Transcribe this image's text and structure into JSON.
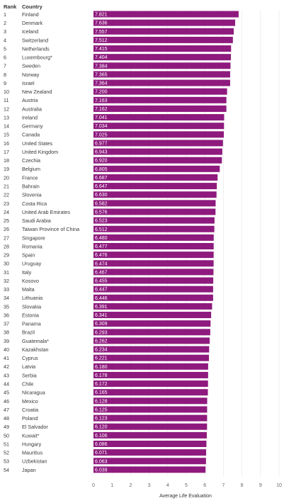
{
  "headers": {
    "rank": "Rank",
    "country": "Country"
  },
  "colors": {
    "bar": "#8e1a7e",
    "value_text": "#ffffff"
  },
  "chart_data": {
    "type": "bar",
    "orientation": "horizontal",
    "xlabel": "Average Life Evaluation",
    "xlim": [
      0,
      10
    ],
    "xticks": [
      "0",
      "1",
      "2",
      "3",
      "4",
      "5",
      "6",
      "7",
      "8",
      "9",
      "10"
    ],
    "grid": true,
    "ranks": [
      "1",
      "2",
      "3",
      "4",
      "5",
      "6",
      "7",
      "8",
      "9",
      "10",
      "11",
      "12",
      "13",
      "14",
      "15",
      "16",
      "17",
      "18",
      "19",
      "20",
      "21",
      "22",
      "23",
      "24",
      "25",
      "26",
      "27",
      "28",
      "29",
      "30",
      "31",
      "32",
      "33",
      "34",
      "35",
      "36",
      "37",
      "38",
      "39",
      "40",
      "41",
      "42",
      "43",
      "44",
      "45",
      "46",
      "47",
      "48",
      "49",
      "50",
      "51",
      "52",
      "53",
      "54"
    ],
    "categories": [
      "Finland",
      "Denmark",
      "Iceland",
      "Switzerland",
      "Netherlands",
      "Luxembourg*",
      "Sweden",
      "Norway",
      "Israel",
      "New Zealand",
      "Austria",
      "Australia",
      "Ireland",
      "Germany",
      "Canada",
      "United States",
      "United Kingdom",
      "Czechia",
      "Belgium",
      "France",
      "Bahrain",
      "Slovenia",
      "Costa Rica",
      "United Arab Emirates",
      "Saudi Arabia",
      "Taiwan Province of China",
      "Singapore",
      "Romania",
      "Spain",
      "Uruguay",
      "Italy",
      "Kosovo",
      "Malta",
      "Lithuania",
      "Slovakia",
      "Estonia",
      "Panama",
      "Brazil",
      "Guatemala*",
      "Kazakhstan",
      "Cyprus",
      "Latvia",
      "Serbia",
      "Chile",
      "Nicaragua",
      "Mexico",
      "Croatia",
      "Poland",
      "El Salvador",
      "Kuwait*",
      "Hungary",
      "Mauritius",
      "Uzbekistan",
      "Japan"
    ],
    "values": [
      7.821,
      7.636,
      7.557,
      7.512,
      7.415,
      7.404,
      7.384,
      7.365,
      7.364,
      7.2,
      7.163,
      7.162,
      7.041,
      7.034,
      7.025,
      6.977,
      6.943,
      6.92,
      6.805,
      6.687,
      6.647,
      6.63,
      6.582,
      6.576,
      6.523,
      6.512,
      6.48,
      6.477,
      6.476,
      6.474,
      6.467,
      6.455,
      6.447,
      6.446,
      6.391,
      6.341,
      6.309,
      6.293,
      6.262,
      6.234,
      6.221,
      6.18,
      6.178,
      6.172,
      6.165,
      6.128,
      6.125,
      6.123,
      6.12,
      6.106,
      6.086,
      6.071,
      6.063,
      6.039
    ],
    "value_labels": [
      "7.821",
      "7.636",
      "7.557",
      "7.512",
      "7.415",
      "7.404",
      "7.384",
      "7.365",
      "7.364",
      "7.200",
      "7.163",
      "7.162",
      "7.041",
      "7.034",
      "7.025",
      "6.977",
      "6.943",
      "6.920",
      "6.805",
      "6.687",
      "6.647",
      "6.630",
      "6.582",
      "6.576",
      "6.523",
      "6.512",
      "6.480",
      "6.477",
      "6.476",
      "6.474",
      "6.467",
      "6.455",
      "6.447",
      "6.446",
      "6.391",
      "6.341",
      "6.309",
      "6.293",
      "6.262",
      "6.234",
      "6.221",
      "6.180",
      "6.178",
      "6.172",
      "6.165",
      "6.128",
      "6.125",
      "6.123",
      "6.120",
      "6.106",
      "6.086",
      "6.071",
      "6.063",
      "6.039"
    ]
  }
}
